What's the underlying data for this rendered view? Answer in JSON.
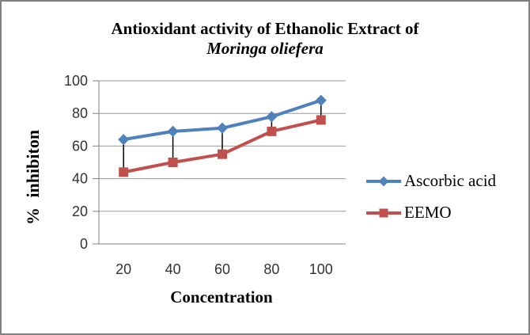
{
  "frame": {
    "background": "#ffffff",
    "border_color": "#808080"
  },
  "chart_data": {
    "type": "line",
    "title_line1": "Antioxidant activity of Ethanolic Extract of",
    "title_line2": "Moringa oliefera",
    "xlabel": "Concentration",
    "ylabel": "% inhibiton",
    "categories": [
      "20",
      "40",
      "60",
      "80",
      "100"
    ],
    "series": [
      {
        "name": "Ascorbic acid",
        "values": [
          64,
          69,
          71,
          78,
          88
        ],
        "color": "#4F81BD",
        "marker": "diamond"
      },
      {
        "name": "EEMO",
        "values": [
          44,
          50,
          55,
          69,
          76
        ],
        "color": "#C0504D",
        "marker": "square"
      }
    ],
    "ylim": [
      0,
      100
    ],
    "yticks": [
      0,
      20,
      40,
      60,
      80,
      100
    ],
    "grid": true,
    "high_low_lines": true,
    "legend_position": "right",
    "colors": {
      "gridline": "#999999",
      "axis": "#808080",
      "tick_label": "#333333",
      "high_low_line": "#000000"
    }
  }
}
